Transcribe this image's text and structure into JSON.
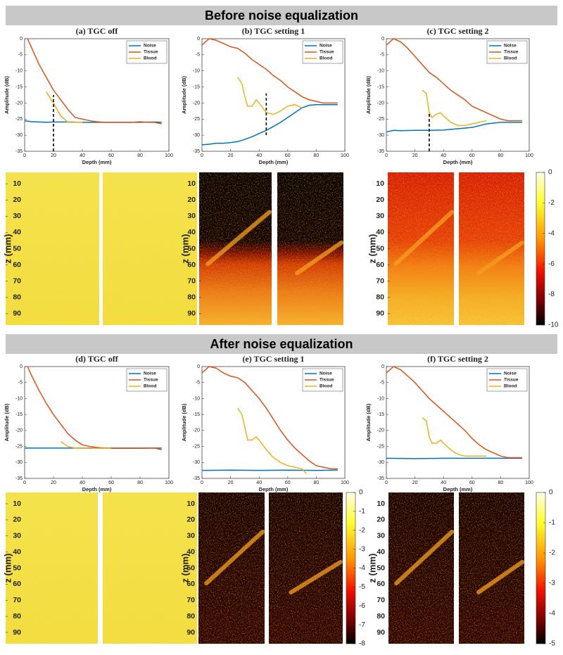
{
  "banners": [
    "Before noise equalization",
    "After noise equalization"
  ],
  "chart_data": [
    {
      "type": "line",
      "title": "(a) TGC off",
      "xlabel": "Depth (mm)",
      "ylabel": "Amplitude (dB)",
      "xlim": [
        0,
        100
      ],
      "xticks": [
        0,
        20,
        40,
        60,
        80,
        100
      ],
      "ylim": [
        -35,
        0
      ],
      "yticks": [
        -35,
        -30,
        -25,
        -20,
        -15,
        -10,
        -5,
        0
      ],
      "legend": "upper right",
      "cutoff": {
        "x": 20,
        "y": [
          -35,
          -17.5
        ]
      },
      "series": [
        {
          "name": "Noise",
          "color": "#0072bd",
          "x": [
            0,
            5,
            10,
            15,
            20,
            30,
            40,
            50,
            60,
            70,
            80,
            90,
            95
          ],
          "values": [
            -25.5,
            -25.8,
            -25.9,
            -26,
            -25.9,
            -25.9,
            -26,
            -26,
            -26,
            -26,
            -26,
            -25.9,
            -26
          ]
        },
        {
          "name": "Tissue",
          "color": "#d95319",
          "x": [
            2,
            5,
            10,
            15,
            20,
            25,
            30,
            35,
            40,
            45,
            50,
            55,
            60,
            65,
            70,
            75,
            80,
            85,
            90,
            95
          ],
          "values": [
            0,
            -3,
            -8,
            -12,
            -16,
            -19,
            -22,
            -24.5,
            -25,
            -25.5,
            -25.8,
            -26,
            -26,
            -26,
            -26,
            -26,
            -25.8,
            -26,
            -26,
            -26.5
          ]
        },
        {
          "name": "Blood",
          "color": "#edb120",
          "x": [
            15,
            20,
            25,
            30,
            35,
            40
          ],
          "values": [
            -16.5,
            -20,
            -24,
            -26,
            -26,
            -26
          ]
        }
      ]
    },
    {
      "type": "line",
      "title": "(b) TGC setting 1",
      "xlabel": "Depth (mm)",
      "ylabel": "Amplitude (dB)",
      "xlim": [
        0,
        100
      ],
      "xticks": [
        0,
        20,
        40,
        60,
        80,
        100
      ],
      "ylim": [
        -35,
        0
      ],
      "yticks": [
        -35,
        -30,
        -25,
        -20,
        -15,
        -10,
        -5,
        0
      ],
      "legend": "upper right",
      "cutoff": {
        "x": 45,
        "y": [
          -30,
          -17
        ]
      },
      "series": [
        {
          "name": "Noise",
          "color": "#0072bd",
          "x": [
            0,
            5,
            10,
            15,
            20,
            25,
            30,
            35,
            40,
            45,
            50,
            55,
            60,
            65,
            70,
            75,
            80,
            85,
            90,
            95
          ],
          "values": [
            -33,
            -32.8,
            -32.5,
            -32.5,
            -32.3,
            -32,
            -31.3,
            -30.5,
            -29.5,
            -28.5,
            -27.3,
            -26,
            -24.5,
            -23,
            -21.5,
            -20.7,
            -20.5,
            -20.5,
            -20.5,
            -20.5
          ]
        },
        {
          "name": "Tissue",
          "color": "#d95319",
          "x": [
            0,
            5,
            10,
            15,
            20,
            25,
            30,
            35,
            40,
            45,
            50,
            55,
            60,
            65,
            70,
            75,
            80,
            85,
            90,
            95
          ],
          "values": [
            -2,
            0,
            -0.5,
            -1.5,
            -2.5,
            -3,
            -4.5,
            -6.5,
            -8,
            -9.5,
            -11.5,
            -13,
            -15,
            -16.5,
            -18,
            -19,
            -19.5,
            -20,
            -20,
            -20
          ]
        },
        {
          "name": "Blood",
          "color": "#edb120",
          "x": [
            25,
            28,
            30,
            32,
            35,
            38,
            40,
            45,
            50,
            55,
            60,
            65,
            70
          ],
          "values": [
            -12,
            -14,
            -18,
            -21,
            -21,
            -19,
            -20,
            -23,
            -23.5,
            -22.5,
            -21,
            -20.5,
            -21.5
          ]
        }
      ]
    },
    {
      "type": "line",
      "title": "(c) TGC setting 2",
      "xlabel": "Depth (mm)",
      "ylabel": "Amplitude (dB)",
      "xlim": [
        0,
        100
      ],
      "xticks": [
        0,
        20,
        40,
        60,
        80,
        100
      ],
      "ylim": [
        -35,
        0
      ],
      "yticks": [
        -35,
        -30,
        -25,
        -20,
        -15,
        -10,
        -5,
        0
      ],
      "legend": "upper right",
      "cutoff": {
        "x": 30,
        "y": [
          -35,
          -23
        ]
      },
      "series": [
        {
          "name": "Noise",
          "color": "#0072bd",
          "x": [
            0,
            5,
            10,
            20,
            30,
            40,
            50,
            60,
            70,
            80,
            90,
            95
          ],
          "values": [
            -29,
            -28.5,
            -28.6,
            -28.5,
            -28.5,
            -28.4,
            -28,
            -27.6,
            -26.5,
            -26,
            -26,
            -26
          ]
        },
        {
          "name": "Tissue",
          "color": "#d95319",
          "x": [
            0,
            5,
            10,
            15,
            20,
            25,
            30,
            35,
            40,
            45,
            50,
            55,
            60,
            65,
            70,
            75,
            80,
            85,
            90,
            95
          ],
          "values": [
            -2,
            0,
            -1,
            -3,
            -5.5,
            -8,
            -10.5,
            -12,
            -14,
            -16,
            -17.5,
            -19,
            -21,
            -22,
            -23,
            -24,
            -25,
            -25.5,
            -25.5,
            -25.5
          ]
        },
        {
          "name": "Blood",
          "color": "#edb120",
          "x": [
            25,
            28,
            30,
            32,
            35,
            38,
            40,
            45,
            50,
            55,
            60,
            65,
            70
          ],
          "values": [
            -16,
            -17,
            -23,
            -24.5,
            -23.5,
            -23,
            -24,
            -26,
            -27,
            -27,
            -26.5,
            -26,
            -25.5
          ]
        }
      ]
    },
    {
      "type": "heatmap",
      "ylabel": "z (mm)",
      "ylim": [
        3,
        97
      ],
      "yticks": [
        10,
        20,
        30,
        40,
        50,
        60,
        70,
        80,
        90
      ],
      "colormap": "hot"
    },
    {
      "type": "heatmap",
      "ylabel": "z (mm)",
      "ylim": [
        3,
        97
      ],
      "yticks": [
        10,
        20,
        30,
        40,
        50,
        60,
        70,
        80,
        90
      ],
      "colormap": "hot"
    },
    {
      "type": "heatmap",
      "ylabel": "z (mm)",
      "ylim": [
        3,
        97
      ],
      "yticks": [
        10,
        20,
        30,
        40,
        50,
        60,
        70,
        80,
        90
      ],
      "colormap": "hot",
      "colorbar": {
        "ylim": [
          -10,
          0
        ],
        "yticks": [
          0,
          -2,
          -4,
          -6,
          -8,
          -10
        ]
      }
    },
    {
      "type": "line",
      "title": "(d) TGC off",
      "xlabel": "Depth (mm)",
      "ylabel": "Amplitude (dB)",
      "xlim": [
        0,
        100
      ],
      "xticks": [
        0,
        20,
        40,
        60,
        80,
        100
      ],
      "ylim": [
        -35,
        0
      ],
      "yticks": [
        -35,
        -30,
        -25,
        -20,
        -15,
        -10,
        -5,
        0
      ],
      "legend": "upper right",
      "series": [
        {
          "name": "Noise",
          "color": "#0072bd",
          "x": [
            0,
            10,
            20,
            30,
            40,
            50,
            60,
            70,
            80,
            90,
            95
          ],
          "values": [
            -25.5,
            -25.5,
            -25.5,
            -25.5,
            -25.5,
            -25.5,
            -25.5,
            -25.5,
            -25.5,
            -25.5,
            -25.5
          ]
        },
        {
          "name": "Tissue",
          "color": "#d95319",
          "x": [
            2,
            5,
            10,
            15,
            20,
            25,
            30,
            35,
            40,
            45,
            50,
            55,
            60,
            70,
            80,
            90,
            95
          ],
          "values": [
            0,
            -3,
            -7.5,
            -11.5,
            -15,
            -18,
            -21,
            -23,
            -24.5,
            -25,
            -25.3,
            -25.5,
            -25.6,
            -25.6,
            -25.6,
            -25.5,
            -26
          ]
        },
        {
          "name": "Blood",
          "color": "#edb120",
          "x": [
            25,
            30,
            35,
            40,
            50,
            60
          ],
          "values": [
            -23.5,
            -25,
            -25.5,
            -25.6,
            -25.6,
            -25.6
          ]
        }
      ]
    },
    {
      "type": "line",
      "title": "(e) TGC setting 1",
      "xlabel": "Depth (mm)",
      "ylabel": "Amplitude (dB)",
      "xlim": [
        0,
        100
      ],
      "xticks": [
        0,
        20,
        40,
        60,
        80,
        100
      ],
      "ylim": [
        -35,
        0
      ],
      "yticks": [
        -35,
        -30,
        -25,
        -20,
        -15,
        -10,
        -5,
        0
      ],
      "legend": "upper right",
      "series": [
        {
          "name": "Noise",
          "color": "#0072bd",
          "x": [
            0,
            20,
            40,
            60,
            80,
            95
          ],
          "values": [
            -32.5,
            -32.4,
            -32.5,
            -32.4,
            -32.5,
            -32.4
          ]
        },
        {
          "name": "Tissue",
          "color": "#d95319",
          "x": [
            0,
            5,
            10,
            15,
            20,
            25,
            30,
            35,
            40,
            45,
            50,
            55,
            60,
            65,
            70,
            75,
            80,
            85,
            90,
            95
          ],
          "values": [
            -2,
            0,
            -0.5,
            -2,
            -3,
            -3.5,
            -5,
            -7.5,
            -10,
            -13,
            -16.5,
            -20,
            -23,
            -25.5,
            -27.5,
            -29.5,
            -31,
            -31.5,
            -32,
            -32
          ]
        },
        {
          "name": "Blood",
          "color": "#edb120",
          "x": [
            25,
            28,
            30,
            32,
            35,
            38,
            40,
            45,
            50,
            55,
            60,
            65,
            70,
            73
          ],
          "values": [
            -13,
            -15,
            -19,
            -23,
            -23,
            -22,
            -23,
            -26,
            -28.5,
            -30,
            -31,
            -31.5,
            -32,
            -33.5
          ]
        }
      ]
    },
    {
      "type": "line",
      "title": "(f) TGC setting 2",
      "xlabel": "Depth (mm)",
      "ylabel": "Amplitude (dB)",
      "xlim": [
        0,
        100
      ],
      "xticks": [
        0,
        20,
        40,
        60,
        80,
        100
      ],
      "ylim": [
        -35,
        0
      ],
      "yticks": [
        -35,
        -30,
        -25,
        -20,
        -15,
        -10,
        -5,
        0
      ],
      "legend": "upper right",
      "series": [
        {
          "name": "Noise",
          "color": "#0072bd",
          "x": [
            0,
            20,
            40,
            60,
            80,
            95
          ],
          "values": [
            -28.7,
            -28.8,
            -28.7,
            -28.7,
            -28.7,
            -28.7
          ]
        },
        {
          "name": "Tissue",
          "color": "#d95319",
          "x": [
            0,
            5,
            10,
            15,
            20,
            25,
            30,
            35,
            40,
            45,
            50,
            55,
            60,
            65,
            70,
            75,
            80,
            85,
            90,
            95
          ],
          "values": [
            -2,
            0,
            -1,
            -3,
            -5,
            -7.5,
            -10,
            -12,
            -14,
            -16,
            -18,
            -20,
            -22.5,
            -24.5,
            -26,
            -27,
            -28,
            -28.5,
            -28.5,
            -28.5
          ]
        },
        {
          "name": "Blood",
          "color": "#edb120",
          "x": [
            25,
            28,
            30,
            32,
            35,
            38,
            40,
            45,
            50,
            55,
            60,
            65,
            70
          ],
          "values": [
            -16,
            -17,
            -22,
            -24,
            -24,
            -23,
            -24,
            -26,
            -27.5,
            -28,
            -28,
            -28,
            -28
          ]
        }
      ]
    },
    {
      "type": "heatmap",
      "ylabel": "z (mm)",
      "ylim": [
        3,
        97
      ],
      "yticks": [
        10,
        20,
        30,
        40,
        50,
        60,
        70,
        80,
        90
      ],
      "colormap": "hot"
    },
    {
      "type": "heatmap",
      "ylabel": "z (mm)",
      "ylim": [
        3,
        97
      ],
      "yticks": [
        10,
        20,
        30,
        40,
        50,
        60,
        70,
        80,
        90
      ],
      "colormap": "hot",
      "colorbar": {
        "ylim": [
          -8,
          0
        ],
        "yticks": [
          0,
          -1,
          -2,
          -3,
          -4,
          -5,
          -6,
          -7,
          -8
        ]
      }
    },
    {
      "type": "heatmap",
      "ylabel": "z (mm)",
      "ylim": [
        3,
        97
      ],
      "yticks": [
        10,
        20,
        30,
        40,
        50,
        60,
        70,
        80,
        90
      ],
      "colormap": "hot",
      "colorbar": {
        "ylim": [
          -5,
          0
        ],
        "yticks": [
          0,
          -1,
          -2,
          -3,
          -4,
          -5
        ]
      }
    }
  ]
}
